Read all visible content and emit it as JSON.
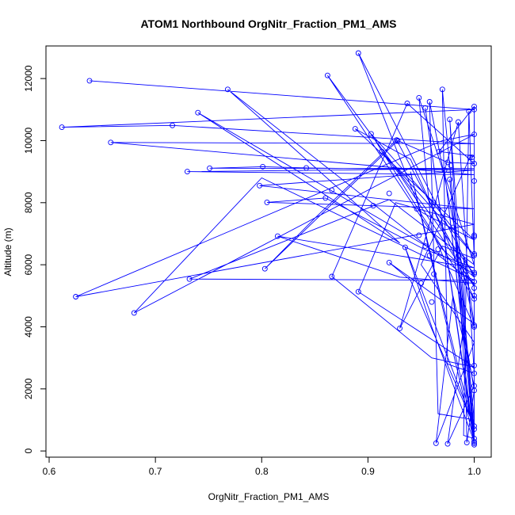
{
  "chart_data": {
    "type": "line",
    "title": "ATOM1 Northbound OrgNitr_Fraction_PM1_AMS",
    "xlabel": "OrgNitr_Fraction_PM1_AMS",
    "ylabel": "Altitude (m)",
    "xlim": [
      0.597,
      1.016
    ],
    "ylim": [
      -200,
      13050
    ],
    "xticks": [
      0.6,
      0.7,
      0.8,
      0.9,
      1.0
    ],
    "xtick_labels": [
      "0.6",
      "0.7",
      "0.8",
      "0.9",
      "1.0"
    ],
    "yticks": [
      0,
      2000,
      4000,
      6000,
      8000,
      10000,
      12000
    ],
    "ytick_labels": [
      "0",
      "2000",
      "4000",
      "6000",
      "8000",
      "10000",
      "12000"
    ],
    "grid": false,
    "legend": "none",
    "color": "#0000ff",
    "series": [
      {
        "points": [
          [
            0.638,
            11930
          ],
          [
            1.0,
            11000
          ],
          [
            0.612,
            10430
          ],
          [
            0.716,
            10490
          ],
          [
            1.0,
            9900
          ],
          [
            0.658,
            9940
          ],
          [
            1.0,
            8900
          ],
          [
            0.73,
            9000
          ],
          [
            1.0,
            9100
          ],
          [
            0.751,
            9110
          ],
          [
            0.801,
            9160
          ],
          [
            0.842,
            9120
          ],
          [
            1.0,
            9050
          ],
          [
            0.798,
            8550
          ],
          [
            1.0,
            7800
          ],
          [
            0.805,
            8010
          ],
          [
            0.86,
            8150
          ],
          [
            0.953,
            6500
          ],
          [
            1.0,
            5900
          ],
          [
            0.815,
            6920
          ],
          [
            0.93,
            5600
          ],
          [
            1.0,
            5400
          ],
          [
            0.768,
            11650
          ],
          [
            0.93,
            6700
          ],
          [
            0.74,
            10900
          ],
          [
            1.0,
            5700
          ],
          [
            0.862,
            12100
          ],
          [
            0.97,
            6500
          ],
          [
            1.0,
            5600
          ],
          [
            0.891,
            12820
          ],
          [
            0.95,
            7700
          ],
          [
            1.0,
            6800
          ],
          [
            0.888,
            10380
          ],
          [
            0.94,
            9400
          ],
          [
            1.0,
            4900
          ],
          [
            0.903,
            10220
          ],
          [
            0.961,
            8000
          ],
          [
            1.0,
            6300
          ],
          [
            0.913,
            9650
          ],
          [
            0.93,
            8900
          ],
          [
            1.0,
            5300
          ],
          [
            0.927,
            10020
          ],
          [
            0.85,
            7500
          ],
          [
            0.803,
            5870
          ],
          [
            0.928,
            10000
          ],
          [
            0.975,
            9300
          ],
          [
            1.0,
            9260
          ],
          [
            0.937,
            11200
          ],
          [
            0.866,
            5620
          ],
          [
            0.96,
            3000
          ],
          [
            1.0,
            2700
          ],
          [
            0.891,
            5130
          ],
          [
            0.926,
            8000
          ],
          [
            1.0,
            7300
          ],
          [
            0.625,
            4970
          ],
          [
            0.97,
            10000
          ],
          [
            1.0,
            10200
          ],
          [
            0.68,
            4450
          ],
          [
            0.8,
            8800
          ],
          [
            1.0,
            5500
          ],
          [
            0.732,
            5540
          ],
          [
            0.92,
            8100
          ],
          [
            1.0,
            6000
          ],
          [
            0.948,
            11380
          ],
          [
            0.96,
            7100
          ],
          [
            1.0,
            4000
          ],
          [
            0.958,
            11250
          ],
          [
            0.966,
            1200
          ],
          [
            1.0,
            1000
          ],
          [
            0.97,
            11650
          ],
          [
            0.975,
            2800
          ],
          [
            1.0,
            2500
          ],
          [
            0.985,
            10600
          ],
          [
            0.93,
            3950
          ],
          [
            0.97,
            6600
          ],
          [
            1.0,
            6200
          ],
          [
            0.995,
            10950
          ],
          [
            0.99,
            500
          ],
          [
            1.0,
            400
          ],
          [
            1.0,
            11100
          ],
          [
            0.967,
            9650
          ],
          [
            1.0,
            9500
          ],
          [
            0.996,
            9460
          ],
          [
            0.95,
            6000
          ],
          [
            1.0,
            3500
          ],
          [
            0.964,
            250
          ],
          [
            0.98,
            5000
          ],
          [
            1.0,
            2100
          ],
          [
            0.975,
            230
          ],
          [
            0.99,
            4000
          ],
          [
            1.0,
            1950
          ],
          [
            0.993,
            270
          ],
          [
            0.99,
            6300
          ],
          [
            1.0,
            4100
          ],
          [
            0.92,
            6070
          ],
          [
            0.94,
            5500
          ],
          [
            1.0,
            800
          ],
          [
            0.935,
            6560
          ],
          [
            0.96,
            4000
          ],
          [
            1.0,
            300
          ],
          [
            0.94,
            9000
          ],
          [
            1.0,
            600
          ],
          [
            0.972,
            9050
          ],
          [
            1.0,
            700
          ],
          [
            0.977,
            8750
          ],
          [
            1.0,
            200
          ],
          [
            0.954,
            11050
          ],
          [
            1.0,
            300
          ],
          [
            0.977,
            10680
          ],
          [
            0.99,
            3000
          ],
          [
            1.0,
            250
          ]
        ]
      }
    ],
    "markers": [
      [
        0.638,
        11930
      ],
      [
        0.612,
        10430
      ],
      [
        0.716,
        10490
      ],
      [
        0.658,
        9940
      ],
      [
        0.73,
        9000
      ],
      [
        0.751,
        9110
      ],
      [
        0.801,
        9160
      ],
      [
        0.842,
        9120
      ],
      [
        0.798,
        8550
      ],
      [
        0.805,
        8010
      ],
      [
        0.86,
        8150
      ],
      [
        0.815,
        6920
      ],
      [
        0.768,
        11650
      ],
      [
        0.74,
        10900
      ],
      [
        0.862,
        12100
      ],
      [
        0.891,
        12820
      ],
      [
        0.888,
        10380
      ],
      [
        0.903,
        10220
      ],
      [
        0.913,
        9650
      ],
      [
        0.927,
        10020
      ],
      [
        0.937,
        11200
      ],
      [
        0.948,
        11380
      ],
      [
        0.958,
        11250
      ],
      [
        0.97,
        11650
      ],
      [
        0.954,
        11050
      ],
      [
        0.977,
        10680
      ],
      [
        0.985,
        10600
      ],
      [
        0.995,
        10950
      ],
      [
        0.967,
        9650
      ],
      [
        0.996,
        9460
      ],
      [
        0.972,
        9050
      ],
      [
        0.977,
        8750
      ],
      [
        0.866,
        8400
      ],
      [
        0.92,
        8300
      ],
      [
        0.905,
        7900
      ],
      [
        0.962,
        8000
      ],
      [
        0.935,
        6560
      ],
      [
        0.92,
        6070
      ],
      [
        0.954,
        6600
      ],
      [
        0.966,
        6500
      ],
      [
        0.803,
        5870
      ],
      [
        0.866,
        5620
      ],
      [
        0.891,
        5130
      ],
      [
        0.93,
        3950
      ],
      [
        0.732,
        5540
      ],
      [
        0.625,
        4970
      ],
      [
        0.68,
        4450
      ],
      [
        0.964,
        250
      ],
      [
        0.975,
        230
      ],
      [
        0.993,
        270
      ],
      [
        0.95,
        5400
      ],
      [
        0.96,
        4800
      ],
      [
        0.958,
        6300
      ],
      [
        0.962,
        5700
      ],
      [
        0.948,
        6950
      ],
      [
        0.985,
        6300
      ],
      [
        0.99,
        5700
      ],
      [
        0.975,
        9300
      ],
      [
        0.98,
        7200
      ],
      [
        0.946,
        7800
      ],
      [
        0.928,
        10000
      ],
      [
        1.0,
        11100
      ],
      [
        1.0,
        11000
      ],
      [
        1.0,
        10200
      ],
      [
        1.0,
        9260
      ],
      [
        1.0,
        8700
      ],
      [
        1.0,
        6950
      ],
      [
        1.0,
        6900
      ],
      [
        1.0,
        6350
      ],
      [
        1.0,
        6300
      ],
      [
        1.0,
        5750
      ],
      [
        1.0,
        5700
      ],
      [
        1.0,
        5450
      ],
      [
        1.0,
        5250
      ],
      [
        1.0,
        5000
      ],
      [
        1.0,
        4900
      ],
      [
        1.0,
        4050
      ],
      [
        1.0,
        4000
      ],
      [
        1.0,
        2750
      ],
      [
        1.0,
        2500
      ],
      [
        1.0,
        2100
      ],
      [
        1.0,
        1950
      ],
      [
        1.0,
        800
      ],
      [
        1.0,
        700
      ],
      [
        1.0,
        400
      ],
      [
        1.0,
        300
      ],
      [
        1.0,
        250
      ],
      [
        1.0,
        200
      ],
      [
        0.998,
        9460
      ],
      [
        0.978,
        9200
      ]
    ]
  }
}
